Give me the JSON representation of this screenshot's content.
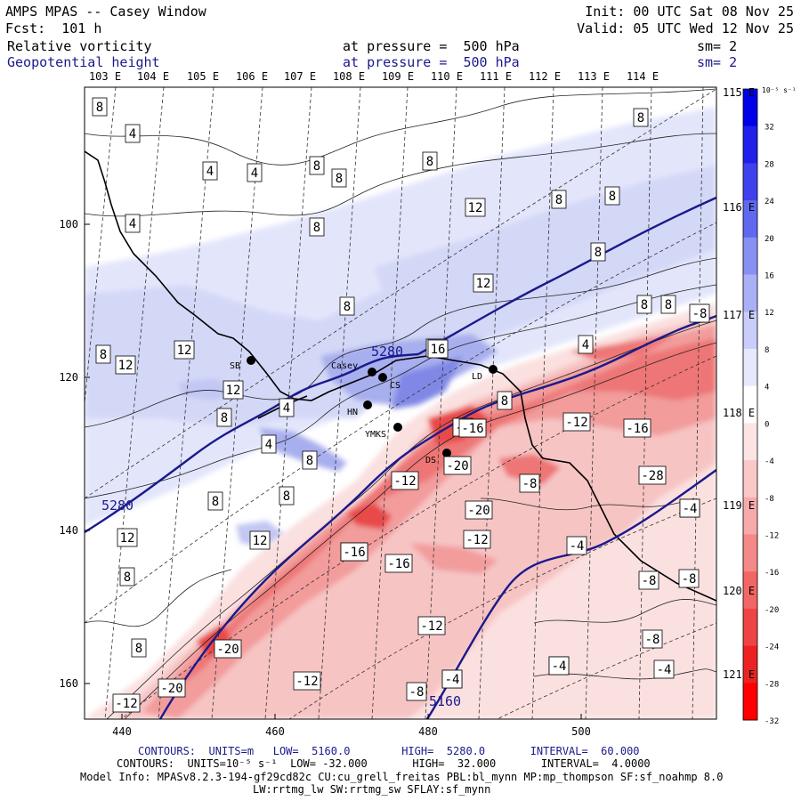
{
  "header": {
    "title": "AMPS MPAS -- Casey Window",
    "forecast": "Fcst:  101 h",
    "init": "Init: 00 UTC Sat 08 Nov 25",
    "valid": "Valid: 05 UTC Wed 12 Nov 25",
    "field1_name": "Relative vorticity",
    "field1_level": "at pressure =  500 hPa",
    "field1_sm": "sm= 2",
    "field2_name": "Geopotential height",
    "field2_level": "at pressure =  500 hPa",
    "field2_sm": "sm= 2"
  },
  "colors": {
    "blue_max": "#0000e8",
    "red_max": "#ff0000",
    "height_contour": "#1a1a8c",
    "coast": "#000000"
  },
  "map": {
    "lon_labels_top": [
      "103 E",
      "104 E",
      "105 E",
      "106 E",
      "107 E",
      "108 E",
      "109 E",
      "110 E",
      "111 E",
      "112 E",
      "113 E",
      "114 E"
    ],
    "lon_labels_right": [
      "115 E",
      "116 E",
      "117 E",
      "118 E",
      "119 E",
      "120 E",
      "121 E"
    ],
    "y_ticks": [
      "100",
      "120",
      "140",
      "160"
    ],
    "x_ticks": [
      "440",
      "460",
      "480",
      "500"
    ],
    "stations": [
      {
        "name": "SB"
      },
      {
        "name": "Casey"
      },
      {
        "name": "CS"
      },
      {
        "name": "HN"
      },
      {
        "name": "LD"
      },
      {
        "name": "YMKS"
      },
      {
        "name": "DS"
      }
    ],
    "height_labels": [
      "5280",
      "5280",
      "5160"
    ],
    "vort_labels": [
      "8",
      "4",
      "4",
      "4",
      "8",
      "8",
      "8",
      "8",
      "8",
      "8",
      "4",
      "8",
      "12",
      "8",
      "12",
      "8",
      "8",
      "8",
      "12",
      "8",
      "12",
      "12",
      "8",
      "4",
      "4",
      "8",
      "12",
      "8",
      "8",
      "12",
      "12",
      "8",
      "8",
      "8",
      "4",
      "8",
      "-8",
      "-12",
      "-16",
      "-16",
      "-20",
      "-12",
      "-8",
      "-28",
      "-20",
      "-24",
      "-16",
      "-12",
      "-4",
      "-8",
      "-16",
      "-12",
      "-12",
      "-4",
      "-8",
      "-4",
      "-8",
      "-4",
      "-20",
      "-20",
      "-12",
      "-8",
      "-8",
      "-4",
      "16",
      "-8",
      "-4",
      "-4"
    ]
  },
  "colorbar": {
    "units": "10⁻⁵ s⁻¹",
    "labels": [
      "32",
      "28",
      "24",
      "20",
      "16",
      "12",
      "8",
      "4",
      "0",
      "-4",
      "-8",
      "-12",
      "-16",
      "-20",
      "-24",
      "-28",
      "-32"
    ]
  },
  "footer": {
    "line1": "CONTOURS:  UNITS=m   LOW=  5160.0        HIGH=  5280.0       INTERVAL=  60.000",
    "line2": "CONTOURS:  UNITS=10⁻⁵ s⁻¹  LOW= -32.000       HIGH=  32.000       INTERVAL=  4.0000",
    "line3": "Model Info: MPASv8.2.3-194-gf29cd82c CU:cu_grell_freitas PBL:bl_mynn MP:mp_thompson SF:sf_noahmp 8.0",
    "line4": "LW:rrtmg_lw SW:rrtmg_sw SFLAY:sf_mynn"
  }
}
